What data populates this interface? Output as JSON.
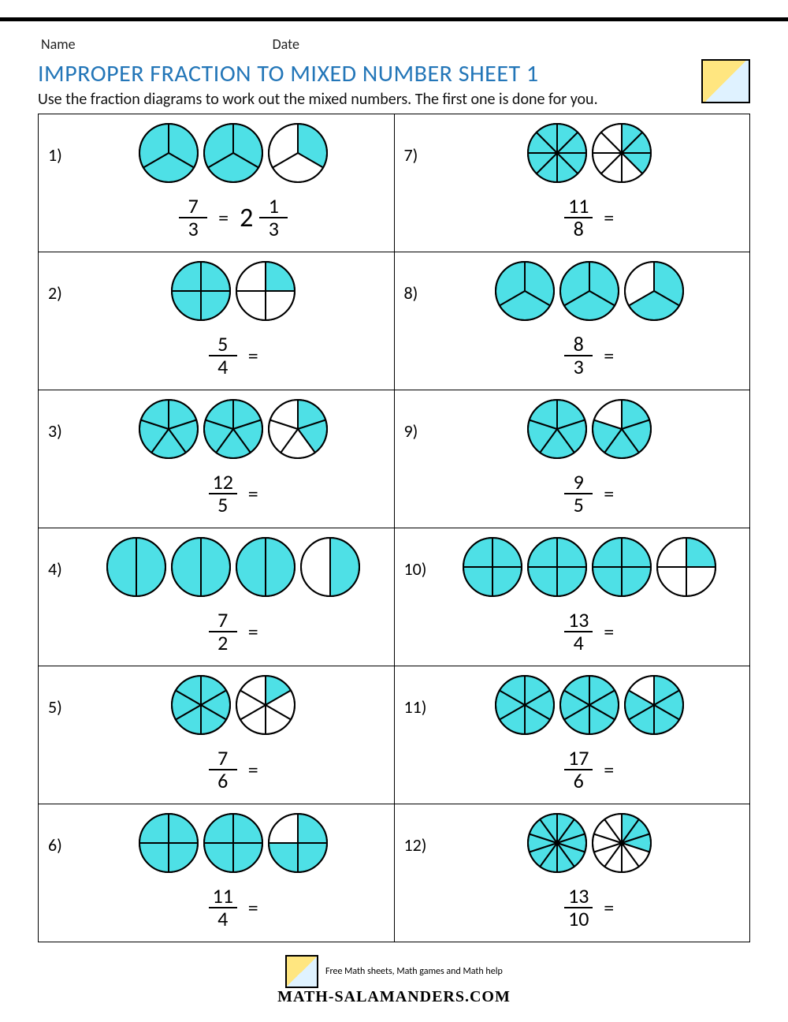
{
  "meta": {
    "name_label": "Name",
    "date_label": "Date"
  },
  "title": {
    "text": "IMPROPER FRACTION TO MIXED NUMBER SHEET 1",
    "color": "#2376b8"
  },
  "instructions": "Use the fraction diagrams to work out the mixed numbers. The first one is done for you.",
  "style": {
    "fill_color": "#4ee0e6",
    "stroke_color": "#000000",
    "stroke_width": 2,
    "circle_radius": 37,
    "background_color": "#ffffff"
  },
  "problems": [
    {
      "n": "1)",
      "numerator": 7,
      "denominator": 3,
      "circles": [
        3,
        3,
        1
      ],
      "answer": {
        "whole": 2,
        "num": 1,
        "den": 3
      }
    },
    {
      "n": "2)",
      "numerator": 5,
      "denominator": 4,
      "circles": [
        4,
        1
      ]
    },
    {
      "n": "3)",
      "numerator": 12,
      "denominator": 5,
      "circles": [
        5,
        5,
        2
      ]
    },
    {
      "n": "4)",
      "numerator": 7,
      "denominator": 2,
      "circles": [
        2,
        2,
        2,
        1
      ]
    },
    {
      "n": "5)",
      "numerator": 7,
      "denominator": 6,
      "circles": [
        6,
        1
      ]
    },
    {
      "n": "6)",
      "numerator": 11,
      "denominator": 4,
      "circles": [
        4,
        4,
        3
      ]
    },
    {
      "n": "7)",
      "numerator": 11,
      "denominator": 8,
      "circles": [
        8,
        3
      ]
    },
    {
      "n": "8)",
      "numerator": 8,
      "denominator": 3,
      "circles": [
        3,
        3,
        2
      ]
    },
    {
      "n": "9)",
      "numerator": 9,
      "denominator": 5,
      "circles": [
        5,
        4
      ]
    },
    {
      "n": "10)",
      "numerator": 13,
      "denominator": 4,
      "circles": [
        4,
        4,
        4,
        1
      ]
    },
    {
      "n": "11)",
      "numerator": 17,
      "denominator": 6,
      "circles": [
        6,
        6,
        5
      ]
    },
    {
      "n": "12)",
      "numerator": 13,
      "denominator": 10,
      "circles": [
        10,
        3
      ]
    }
  ],
  "footer": {
    "tagline": "Free Math sheets, Math games and Math help",
    "brand": "MATH-SALAMANDERS.COM"
  }
}
